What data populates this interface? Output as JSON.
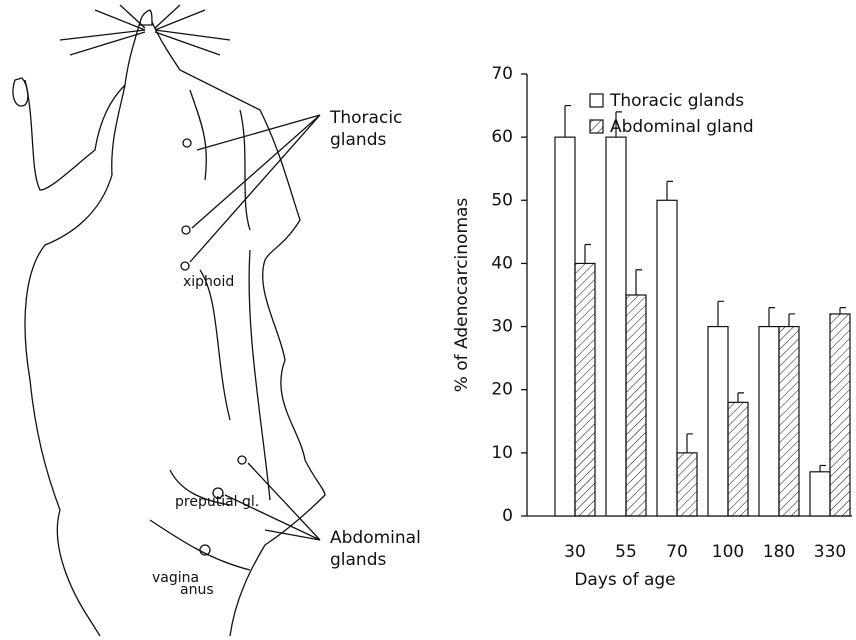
{
  "illustration": {
    "thoracic_label": [
      "Thoracic",
      "glands"
    ],
    "xiphoid": "xiphoid",
    "preputial": "preputial gl.",
    "abdominal_label": [
      "Abdominal",
      "glands"
    ],
    "vagina": "vagina",
    "anus": "anus"
  },
  "chart_data": {
    "type": "bar",
    "y_label": "% of Adenocarcinomas",
    "x_label": "Days of age",
    "categories": [
      "30",
      "55",
      "70",
      "100",
      "180",
      "330"
    ],
    "series": [
      {
        "name": "Thoracic glands",
        "color": "#ffffff",
        "hatch": false,
        "values": [
          60,
          60,
          50,
          30,
          30,
          7
        ],
        "errors": [
          5,
          4,
          3,
          4,
          3,
          1
        ]
      },
      {
        "name": "Abdominal gland",
        "color": "#ffffff",
        "hatch": true,
        "values": [
          40,
          35,
          10,
          18,
          30,
          32
        ],
        "errors": [
          3,
          4,
          3,
          1.5,
          2,
          1
        ]
      }
    ],
    "ylim": [
      0,
      70
    ],
    "yticks": [
      0,
      10,
      20,
      30,
      40,
      50,
      60,
      70
    ],
    "grid": false,
    "legend": "top-right"
  }
}
